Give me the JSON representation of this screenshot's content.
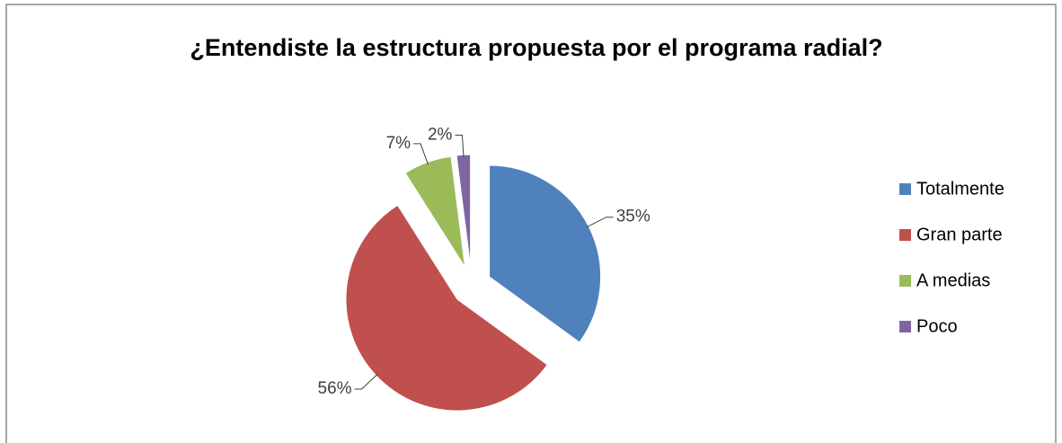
{
  "chart_data": {
    "type": "pie",
    "title": "¿Entendiste la estructura propuesta por el programa radial?",
    "categories": [
      "Totalmente",
      "Gran parte",
      "A medias",
      "Poco"
    ],
    "values": [
      35,
      56,
      7,
      2
    ],
    "value_labels": [
      "35%",
      "56%",
      "7%",
      "2%"
    ],
    "colors": [
      "#4f81bd",
      "#c0504d",
      "#9bbb59",
      "#8064a2"
    ],
    "legend": "right"
  }
}
